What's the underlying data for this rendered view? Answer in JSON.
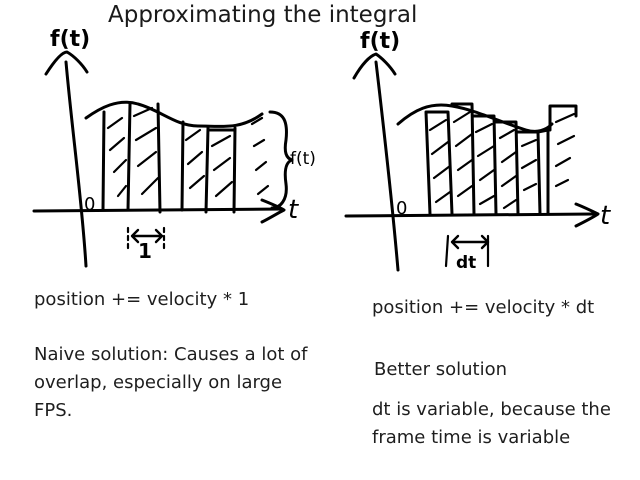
{
  "title": "Approximating the integral",
  "left": {
    "y_label": "f(t)",
    "x_label": "t",
    "origin_label": "0",
    "step_label": "1",
    "height_label": "f(t)",
    "formula": "position += velocity * 1",
    "caption_line1": "Naive solution: Causes a lot of",
    "caption_line2": "overlap, especially on large",
    "caption_line3": "FPS."
  },
  "right": {
    "y_label": "f(t)",
    "x_label": "t",
    "origin_label": "0",
    "step_label": "dt",
    "formula": "position += velocity * dt",
    "caption": "Better solution",
    "note_line1": "dt is variable, because the",
    "note_line2": "frame time is variable"
  },
  "colors": {
    "ink": "#000000",
    "text": "#1e1e1e"
  }
}
